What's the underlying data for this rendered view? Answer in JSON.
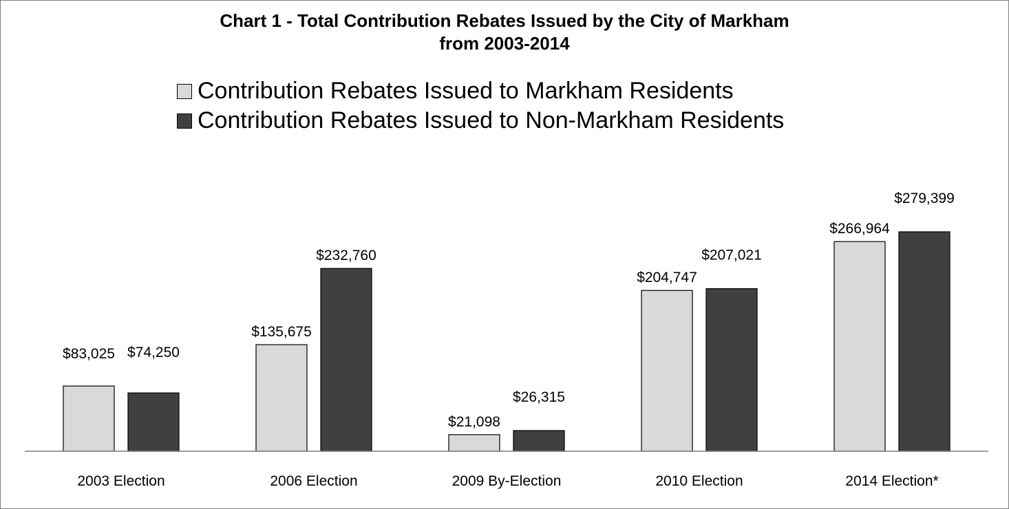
{
  "chart_data": {
    "type": "bar",
    "title_line1": "Chart 1 - Total Contribution Rebates Issued by the City of Markham",
    "title_line2": "from 2003-2014",
    "categories": [
      "2003 Election",
      "2006 Election",
      "2009 By-Election",
      "2010 Election",
      "2014 Election*"
    ],
    "series": [
      {
        "name": "Contribution Rebates Issued to Markham Residents",
        "color": "#d9d9d9",
        "values": [
          83025,
          135675,
          21098,
          204747,
          266964
        ],
        "labels": [
          "$83,025",
          "$135,675",
          "$21,098",
          "$204,747",
          "$266,964"
        ]
      },
      {
        "name": "Contribution Rebates Issued to Non-Markham Residents",
        "color": "#404040",
        "values": [
          74250,
          232760,
          26315,
          207021,
          279399
        ],
        "labels": [
          "$74,250",
          "$232,760",
          "$26,315",
          "$207,021",
          "$279,399"
        ]
      }
    ],
    "legend_position": "top",
    "grid": false,
    "ylim": [
      0,
      300000
    ]
  }
}
